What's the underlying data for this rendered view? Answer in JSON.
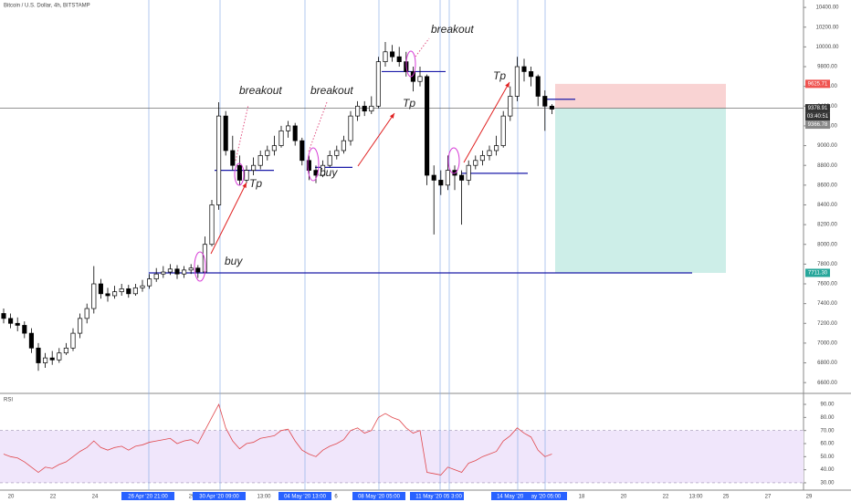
{
  "chart_data": {
    "type": "candlestick",
    "title": "Bitcoin / U.S. Dollar, 4h, BITSTAMP",
    "candles": [
      [
        7300,
        7350,
        7200,
        7250
      ],
      [
        7250,
        7300,
        7150,
        7200
      ],
      [
        7200,
        7260,
        7120,
        7180
      ],
      [
        7180,
        7220,
        7050,
        7100
      ],
      [
        7100,
        7150,
        6900,
        6950
      ],
      [
        6950,
        7000,
        6720,
        6800
      ],
      [
        6800,
        6900,
        6750,
        6850
      ],
      [
        6850,
        6920,
        6780,
        6830
      ],
      [
        6830,
        6950,
        6800,
        6900
      ],
      [
        6900,
        7000,
        6880,
        6950
      ],
      [
        6950,
        7150,
        6920,
        7100
      ],
      [
        7100,
        7300,
        7050,
        7250
      ],
      [
        7250,
        7400,
        7200,
        7350
      ],
      [
        7350,
        7780,
        7300,
        7600
      ],
      [
        7600,
        7650,
        7450,
        7500
      ],
      [
        7500,
        7560,
        7420,
        7480
      ],
      [
        7480,
        7580,
        7450,
        7520
      ],
      [
        7520,
        7600,
        7480,
        7550
      ],
      [
        7550,
        7590,
        7460,
        7500
      ],
      [
        7500,
        7600,
        7480,
        7560
      ],
      [
        7560,
        7640,
        7520,
        7580
      ],
      [
        7580,
        7700,
        7550,
        7650
      ],
      [
        7650,
        7760,
        7620,
        7700
      ],
      [
        7700,
        7780,
        7660,
        7720
      ],
      [
        7720,
        7800,
        7690,
        7750
      ],
      [
        7750,
        7790,
        7650,
        7700
      ],
      [
        7700,
        7780,
        7660,
        7740
      ],
      [
        7740,
        7800,
        7700,
        7760
      ],
      [
        7760,
        7790,
        7660,
        7720
      ],
      [
        7720,
        8080,
        7700,
        8000
      ],
      [
        8000,
        8450,
        7980,
        8400
      ],
      [
        8400,
        9440,
        8350,
        9300
      ],
      [
        9300,
        9350,
        8900,
        8950
      ],
      [
        8950,
        9100,
        8750,
        8800
      ],
      [
        8800,
        8900,
        8600,
        8650
      ],
      [
        8650,
        8800,
        8620,
        8750
      ],
      [
        8750,
        8880,
        8700,
        8800
      ],
      [
        8800,
        8950,
        8760,
        8900
      ],
      [
        8900,
        9000,
        8850,
        8950
      ],
      [
        8950,
        9100,
        8900,
        9000
      ],
      [
        9000,
        9200,
        8980,
        9150
      ],
      [
        9150,
        9250,
        9080,
        9200
      ],
      [
        9200,
        9230,
        9000,
        9050
      ],
      [
        9050,
        9080,
        8800,
        8850
      ],
      [
        8850,
        8900,
        8650,
        8750
      ],
      [
        8750,
        8800,
        8620,
        8700
      ],
      [
        8700,
        8850,
        8680,
        8800
      ],
      [
        8800,
        8950,
        8780,
        8900
      ],
      [
        8900,
        9000,
        8860,
        8950
      ],
      [
        8950,
        9100,
        8920,
        9050
      ],
      [
        9050,
        9350,
        9000,
        9300
      ],
      [
        9300,
        9450,
        9250,
        9400
      ],
      [
        9400,
        9450,
        9300,
        9350
      ],
      [
        9350,
        9500,
        9320,
        9400
      ],
      [
        9400,
        9900,
        9380,
        9850
      ],
      [
        9850,
        10050,
        9800,
        9950
      ],
      [
        9950,
        10020,
        9850,
        9900
      ],
      [
        9900,
        10000,
        9800,
        9850
      ],
      [
        9850,
        9950,
        9700,
        9750
      ],
      [
        9750,
        9800,
        9550,
        9650
      ],
      [
        9650,
        9800,
        9600,
        9700
      ],
      [
        9700,
        9720,
        8600,
        8700
      ],
      [
        8700,
        8800,
        8100,
        8650
      ],
      [
        8650,
        8750,
        8500,
        8600
      ],
      [
        8600,
        8900,
        8550,
        8750
      ],
      [
        8750,
        8800,
        8550,
        8700
      ],
      [
        8700,
        8750,
        8200,
        8650
      ],
      [
        8650,
        8850,
        8600,
        8800
      ],
      [
        8800,
        8900,
        8760,
        8850
      ],
      [
        8850,
        8950,
        8800,
        8900
      ],
      [
        8900,
        9000,
        8850,
        8950
      ],
      [
        8950,
        9100,
        8900,
        9000
      ],
      [
        9000,
        9350,
        8980,
        9300
      ],
      [
        9300,
        9600,
        9250,
        9500
      ],
      [
        9500,
        9900,
        9450,
        9800
      ],
      [
        9800,
        9880,
        9650,
        9750
      ],
      [
        9750,
        9800,
        9600,
        9700
      ],
      [
        9700,
        9720,
        9400,
        9500
      ],
      [
        9500,
        9560,
        9150,
        9400
      ],
      [
        9400,
        9420,
        9320,
        9370
      ]
    ],
    "ylim": [
      6500,
      10475
    ],
    "yticks": [
      {
        "value": 6600,
        "label": "6600.00"
      },
      {
        "value": 6800,
        "label": "6800.00"
      },
      {
        "value": 7000,
        "label": "7000.00"
      },
      {
        "value": 7200,
        "label": "7200.00"
      },
      {
        "value": 7400,
        "label": "7400.00"
      },
      {
        "value": 7600,
        "label": "7600.00"
      },
      {
        "value": 7800,
        "label": "7800.00"
      },
      {
        "value": 8000,
        "label": "8000.00"
      },
      {
        "value": 8200,
        "label": "8200.00"
      },
      {
        "value": 8400,
        "label": "8400.00"
      },
      {
        "value": 8600,
        "label": "8600.00"
      },
      {
        "value": 8800,
        "label": "8800.00"
      },
      {
        "value": 9000,
        "label": "9000.00"
      },
      {
        "value": 9200,
        "label": "9200.00"
      },
      {
        "value": 9400,
        "label": "9400.00"
      },
      {
        "value": 9600,
        "label": "9600.00"
      },
      {
        "value": 9800,
        "label": "9800.00"
      },
      {
        "value": 10000,
        "label": "10000.00"
      },
      {
        "value": 10200,
        "label": "10200.00"
      },
      {
        "value": 10400,
        "label": "10400.00"
      }
    ],
    "stop": 9625.71,
    "last_price": 9378.91,
    "countdown": "03:40:51",
    "cursor_price": 9366.78,
    "target": {
      "value": 7711.3,
      "label": "7711.30"
    },
    "levels": [
      8750,
      8780,
      9750,
      8720,
      9470
    ],
    "annotations": [
      "breakout",
      "breakout",
      "breakout",
      "buy",
      "buy",
      "Tp",
      "Tp",
      "Tp"
    ],
    "xlabels": [
      "20",
      "22",
      "24",
      "26 Apr '20   21:00",
      "29",
      "30 Apr '20   09:00",
      "13:00",
      "04 May '20   13:00",
      "6",
      "08 May '20   05:00",
      "13:00",
      "11 May '20   05:00",
      "3:00",
      "14 May '20   21:00",
      "ay '20   05:00",
      "18",
      "20",
      "22",
      "13:00",
      "25",
      "27",
      "29"
    ],
    "rsi": {
      "label": "RSI",
      "color": "#e0474c",
      "values": [
        52,
        50,
        49,
        46,
        42,
        38,
        42,
        41,
        44,
        46,
        50,
        54,
        57,
        62,
        57,
        55,
        57,
        58,
        55,
        58,
        59,
        61,
        62,
        63,
        64,
        60,
        62,
        63,
        60,
        70,
        80,
        90,
        72,
        62,
        56,
        60,
        61,
        64,
        65,
        66,
        70,
        71,
        62,
        55,
        52,
        50,
        55,
        58,
        60,
        63,
        70,
        72,
        68,
        70,
        80,
        83,
        80,
        78,
        72,
        68,
        70,
        38,
        37,
        36,
        42,
        40,
        38,
        45,
        47,
        50,
        52,
        54,
        62,
        66,
        72,
        68,
        65,
        55,
        50,
        52
      ],
      "ylim": [
        24.4,
        97.7
      ],
      "band": [
        30,
        70
      ],
      "yticks": [
        {
          "value": 30,
          "label": "30.00"
        },
        {
          "value": 40,
          "label": "40.00"
        },
        {
          "value": 50,
          "label": "50.00"
        },
        {
          "value": 60,
          "label": "60.00"
        },
        {
          "value": 70,
          "label": "70.00"
        },
        {
          "value": 80,
          "label": "80.00"
        },
        {
          "value": 90,
          "label": "90.00"
        }
      ]
    }
  }
}
